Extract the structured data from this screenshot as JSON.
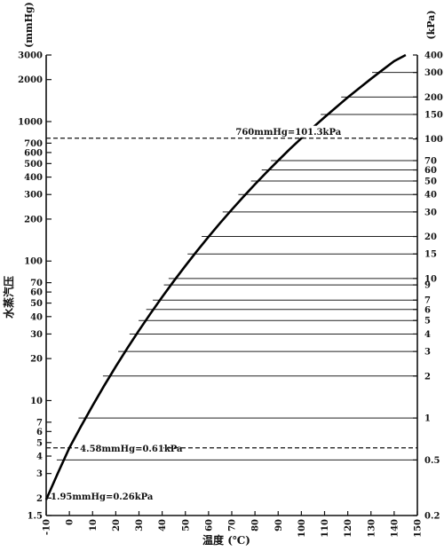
{
  "chart_data": {
    "type": "line",
    "title": "",
    "xlabel": "温度 (℃)",
    "ylabel": "水蒸汽压",
    "left_unit": "(mmHg)",
    "right_unit": "(kPa)",
    "xlim": [
      -10,
      150
    ],
    "ylim_mmHg": [
      1.5,
      3000
    ],
    "ylim_kPa": [
      0.2,
      400
    ],
    "y_scale": "log",
    "grid": false,
    "x_ticks": [
      -10,
      0,
      10,
      20,
      30,
      40,
      50,
      60,
      70,
      80,
      90,
      100,
      110,
      120,
      130,
      140,
      150
    ],
    "left_ticks": [
      {
        "v": 1.5,
        "label": "1.5"
      },
      {
        "v": 2,
        "label": "2"
      },
      {
        "v": 3,
        "label": "3"
      },
      {
        "v": 4,
        "label": "4"
      },
      {
        "v": 5,
        "label": "5"
      },
      {
        "v": 6,
        "label": "6"
      },
      {
        "v": 7,
        "label": "7"
      },
      {
        "v": 10,
        "label": "10"
      },
      {
        "v": 20,
        "label": "20"
      },
      {
        "v": 30,
        "label": "30"
      },
      {
        "v": 40,
        "label": "40"
      },
      {
        "v": 50,
        "label": "50"
      },
      {
        "v": 60,
        "label": "60"
      },
      {
        "v": 70,
        "label": "70"
      },
      {
        "v": 100,
        "label": "100"
      },
      {
        "v": 200,
        "label": "200"
      },
      {
        "v": 300,
        "label": "300"
      },
      {
        "v": 400,
        "label": "400"
      },
      {
        "v": 500,
        "label": "500"
      },
      {
        "v": 600,
        "label": "600"
      },
      {
        "v": 700,
        "label": "700"
      },
      {
        "v": 1000,
        "label": "1000"
      },
      {
        "v": 2000,
        "label": "2000"
      },
      {
        "v": 3000,
        "label": "3000"
      }
    ],
    "right_ticks": [
      {
        "v": 0.2,
        "label": "0.2"
      },
      {
        "v": 0.5,
        "label": "0.5"
      },
      {
        "v": 1,
        "label": "1"
      },
      {
        "v": 2,
        "label": "2"
      },
      {
        "v": 3,
        "label": "3"
      },
      {
        "v": 4,
        "label": "4"
      },
      {
        "v": 5,
        "label": "5"
      },
      {
        "v": 6,
        "label": "6"
      },
      {
        "v": 7,
        "label": "7"
      },
      {
        "v": 9,
        "label": "9"
      },
      {
        "v": 10,
        "label": "10"
      },
      {
        "v": 15,
        "label": "15"
      },
      {
        "v": 20,
        "label": "20"
      },
      {
        "v": 30,
        "label": "30"
      },
      {
        "v": 40,
        "label": "40"
      },
      {
        "v": 50,
        "label": "50"
      },
      {
        "v": 60,
        "label": "60"
      },
      {
        "v": 70,
        "label": "70"
      },
      {
        "v": 100,
        "label": "100"
      },
      {
        "v": 150,
        "label": "150"
      },
      {
        "v": 200,
        "label": "200"
      },
      {
        "v": 300,
        "label": "300"
      },
      {
        "v": 400,
        "label": "400"
      }
    ],
    "series": [
      {
        "x": [
          -10,
          -5,
          0,
          5,
          10,
          15,
          20,
          25,
          30,
          35,
          40,
          45,
          50,
          55,
          60,
          65,
          70,
          75,
          80,
          85,
          90,
          95,
          100,
          105,
          110,
          115,
          120,
          125,
          130,
          135,
          140,
          145
        ],
        "y": [
          1.95,
          3.01,
          4.58,
          6.54,
          9.21,
          12.79,
          17.54,
          23.76,
          31.82,
          42.18,
          55.32,
          71.88,
          92.51,
          118.0,
          149.4,
          187.5,
          233.7,
          289.1,
          355.1,
          433.6,
          525.8,
          633.9,
          760.0,
          906.1,
          1074.6,
          1267.0,
          1489.1,
          1740.9,
          2026.2,
          2347.3,
          2710.9,
          3114.0
        ]
      }
    ],
    "kpa_reference_lines": [
      0.5,
      1,
      2,
      3,
      4,
      5,
      6,
      7,
      9,
      10,
      15,
      20,
      30,
      40,
      50,
      60,
      70,
      150,
      200,
      300,
      400
    ],
    "annotations": [
      {
        "text": "760mmHg=101.3kPa",
        "x": 100,
        "y_mmHg": 760,
        "dashed": true
      },
      {
        "text": "4.58mmHg=0.61kPa",
        "x": 0,
        "y_mmHg": 4.58,
        "dashed": true
      },
      {
        "text": "1.95mmHg=0.26kPa",
        "x": -10,
        "y_mmHg": 1.95,
        "dashed": false
      }
    ]
  }
}
